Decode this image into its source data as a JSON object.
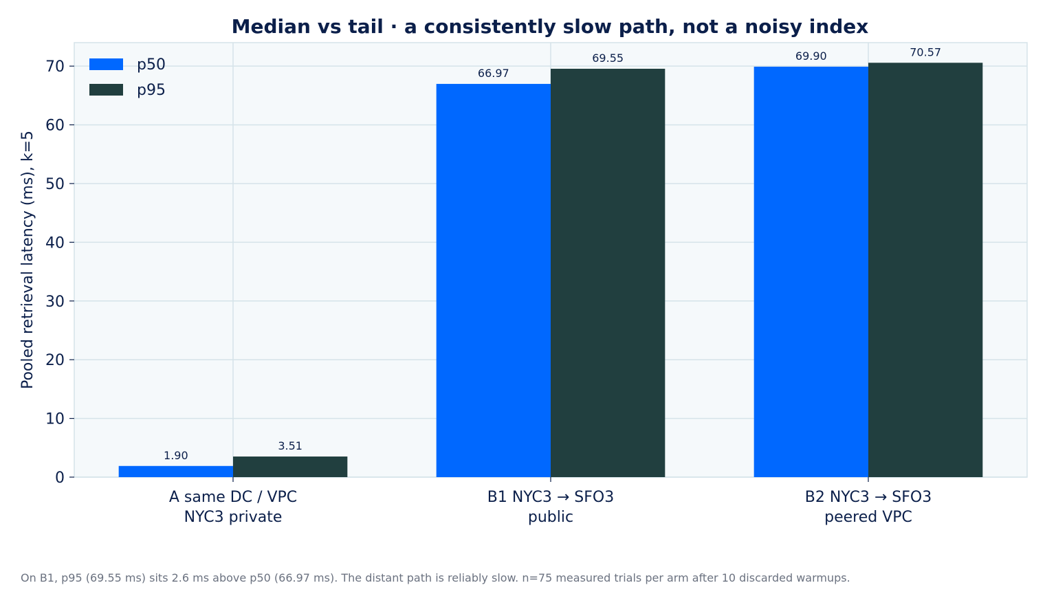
{
  "chart_data": {
    "type": "bar",
    "title": "Median vs tail  ·  a consistently slow path, not a noisy index",
    "xlabel": "",
    "ylabel": "Pooled retrieval latency (ms), k=5",
    "ylim": [
      0,
      74
    ],
    "yticks": [
      0,
      10,
      20,
      30,
      40,
      50,
      60,
      70
    ],
    "grid": true,
    "legend_position": "top-left",
    "categories": [
      [
        "A  same DC / VPC",
        "NYC3 private"
      ],
      [
        "B1  NYC3 → SFO3",
        "public"
      ],
      [
        "B2  NYC3 → SFO3",
        "peered VPC"
      ]
    ],
    "series": [
      {
        "name": "p50",
        "color": "#0068ff",
        "values": [
          1.9,
          66.97,
          69.9
        ],
        "labels": [
          "1.90",
          "66.97",
          "69.90"
        ]
      },
      {
        "name": "p95",
        "color": "#213f3f",
        "values": [
          3.51,
          69.55,
          70.57
        ],
        "labels": [
          "3.51",
          "69.55",
          "70.57"
        ]
      }
    ],
    "colors": {
      "plot_background": "#f5f9fb",
      "grid": "#d5e3e9",
      "text": "#0b1f4a"
    }
  },
  "footnote": "On B1, p95 (69.55 ms) sits 2.6 ms above p50 (66.97 ms). The distant path is reliably slow. n=75 measured trials per arm after 10 discarded warmups."
}
